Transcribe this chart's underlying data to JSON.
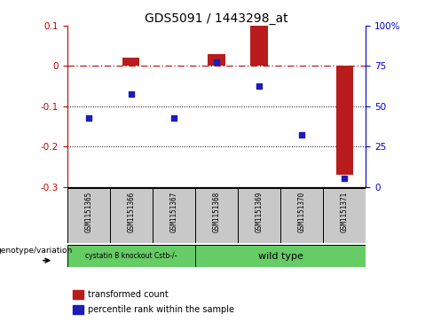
{
  "title": "GDS5091 / 1443298_at",
  "samples": [
    "GSM1151365",
    "GSM1151366",
    "GSM1151367",
    "GSM1151368",
    "GSM1151369",
    "GSM1151370",
    "GSM1151371"
  ],
  "red_values": [
    0.0,
    0.02,
    0.0,
    0.03,
    0.1,
    0.0,
    -0.27
  ],
  "blue_values": [
    -0.13,
    -0.07,
    -0.13,
    0.01,
    -0.05,
    -0.17,
    -0.28
  ],
  "ylim_left": [
    -0.3,
    0.1
  ],
  "ylim_right": [
    0,
    100
  ],
  "yticks_left": [
    -0.3,
    -0.2,
    -0.1,
    0.0,
    0.1
  ],
  "yticks_right": [
    0,
    25,
    50,
    75,
    100
  ],
  "hlines_dotted": [
    -0.1,
    -0.2
  ],
  "hline_dash": 0.0,
  "group1_label": "cystatin B knockout Cstb-/-",
  "group2_label": "wild type",
  "group1_count": 3,
  "legend_red": "transformed count",
  "legend_blue": "percentile rank within the sample",
  "genotype_label": "genotype/variation",
  "bar_color_red": "#b81c1c",
  "bar_color_blue": "#1c1cb8",
  "group_color": "#66cc66",
  "bg_color": "#ffffff",
  "dotted_line_color": "#000000",
  "dashed_line_color": "#b81c1c",
  "tick_color_left": "#cc0000",
  "tick_color_right": "#0000cc",
  "sample_box_color": "#c8c8c8",
  "bar_width": 0.4
}
